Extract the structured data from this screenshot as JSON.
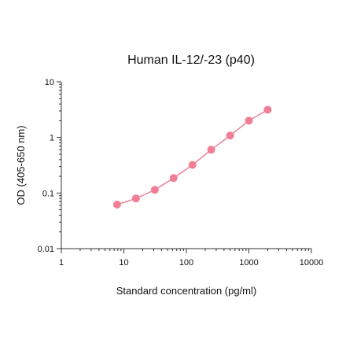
{
  "chart_data": {
    "type": "line",
    "title": "Human IL-12/-23 (p40)",
    "xlabel": "Standard concentration (pg/ml)",
    "ylabel": "OD (405-650 nm)",
    "xscale": "log",
    "yscale": "log",
    "xlim": [
      1,
      10000
    ],
    "ylim": [
      0.01,
      10
    ],
    "grid": false,
    "legend": "none",
    "x_ticks": [
      "1",
      "10",
      "100",
      "1000",
      "10000"
    ],
    "y_ticks": [
      "0.01",
      "0.1",
      "1",
      "10"
    ],
    "series": [
      {
        "color": "#f07f95",
        "x": [
          7.8,
          15.6,
          31.3,
          62.5,
          125,
          250,
          500,
          1000,
          2000
        ],
        "y": [
          0.062,
          0.08,
          0.114,
          0.186,
          0.32,
          0.6,
          1.08,
          2.0,
          3.15
        ]
      }
    ]
  }
}
